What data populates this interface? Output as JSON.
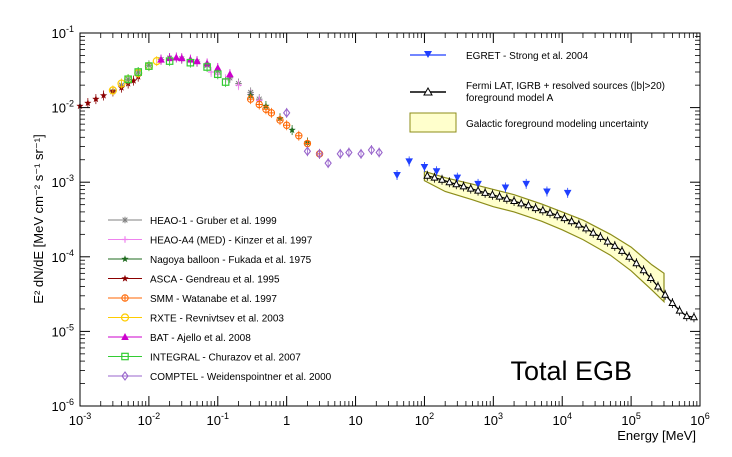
{
  "chart_data": {
    "type": "scatter",
    "title": "Total EGB",
    "xlabel": "Energy [MeV]",
    "ylabel": "E² dN/dE [MeV cm⁻² s⁻¹ sr⁻¹]",
    "xscale": "log",
    "yscale": "log",
    "xlim": [
      0.001,
      1000000
    ],
    "ylim": [
      1e-06,
      0.1
    ],
    "x_ticks": [
      {
        "v": 0.001,
        "b": "10",
        "e": "-3"
      },
      {
        "v": 0.01,
        "b": "10",
        "e": "-2"
      },
      {
        "v": 0.1,
        "b": "10",
        "e": "-1"
      },
      {
        "v": 1,
        "b": "1",
        "e": ""
      },
      {
        "v": 10,
        "b": "10",
        "e": ""
      },
      {
        "v": 100,
        "b": "10",
        "e": "2"
      },
      {
        "v": 1000,
        "b": "10",
        "e": "3"
      },
      {
        "v": 10000,
        "b": "10",
        "e": "4"
      },
      {
        "v": 100000,
        "b": "10",
        "e": "5"
      },
      {
        "v": 1000000,
        "b": "10",
        "e": "6"
      }
    ],
    "y_ticks": [
      {
        "v": 1e-06,
        "b": "10",
        "e": "-6"
      },
      {
        "v": 1e-05,
        "b": "10",
        "e": "-5"
      },
      {
        "v": 0.0001,
        "b": "10",
        "e": "-4"
      },
      {
        "v": 0.001,
        "b": "10",
        "e": "-3"
      },
      {
        "v": 0.01,
        "b": "10",
        "e": "-2"
      },
      {
        "v": 0.1,
        "b": "10",
        "e": "-1"
      }
    ],
    "band": {
      "name": "Galactic foreground modeling uncertainty",
      "color": "#ffffcc",
      "edge": "#8c8c1a",
      "lower": [
        [
          100,
          0.00105
        ],
        [
          200,
          0.00075
        ],
        [
          500,
          0.00058
        ],
        [
          1000,
          0.00047
        ],
        [
          2000,
          0.0004
        ],
        [
          5000,
          0.0003
        ],
        [
          10000,
          0.00023
        ],
        [
          20000,
          0.00017
        ],
        [
          50000,
          0.000105
        ],
        [
          100000,
          6.5e-05
        ],
        [
          200000,
          3.6e-05
        ],
        [
          300000,
          2.5e-05
        ]
      ],
      "upper": [
        [
          100,
          0.0014
        ],
        [
          200,
          0.00115
        ],
        [
          500,
          0.00094
        ],
        [
          1000,
          0.0008
        ],
        [
          2000,
          0.00068
        ],
        [
          5000,
          0.00051
        ],
        [
          10000,
          0.0004
        ],
        [
          20000,
          0.00031
        ],
        [
          50000,
          0.0002
        ],
        [
          100000,
          0.000135
        ],
        [
          200000,
          7.8e-05
        ],
        [
          300000,
          6e-05
        ]
      ]
    },
    "series": [
      {
        "name": "HEAO-1 - Gruber et al. 1999",
        "color": "#808080",
        "marker": "asterisk",
        "points": [
          [
            0.003,
            0.0165
          ],
          [
            0.004,
            0.02
          ],
          [
            0.005,
            0.024
          ],
          [
            0.007,
            0.03
          ],
          [
            0.01,
            0.037
          ],
          [
            0.015,
            0.044
          ],
          [
            0.02,
            0.046
          ],
          [
            0.03,
            0.045
          ],
          [
            0.05,
            0.041
          ],
          [
            0.07,
            0.037
          ],
          [
            0.1,
            0.031
          ],
          [
            0.15,
            0.025
          ],
          [
            0.2,
            0.021
          ],
          [
            0.3,
            0.016
          ],
          [
            0.4,
            0.013
          ]
        ]
      },
      {
        "name": "HEAO-A4 (MED) - Kinzer et al. 1997",
        "color": "#ee82ee",
        "marker": "plus",
        "points": [
          [
            0.08,
            0.03
          ],
          [
            0.1,
            0.028
          ],
          [
            0.13,
            0.024
          ],
          [
            0.2,
            0.02
          ],
          [
            0.3,
            0.015
          ],
          [
            0.4,
            0.0125
          ]
        ]
      },
      {
        "name": "Nagoya balloon - Fukada et al. 1975",
        "color": "#1f6b1f",
        "marker": "star",
        "points": [
          [
            0.3,
            0.0145
          ],
          [
            0.5,
            0.0105
          ],
          [
            0.8,
            0.0072
          ],
          [
            1.2,
            0.005
          ],
          [
            2,
            0.0034
          ]
        ]
      },
      {
        "name": "ASCA - Gendreau et al. 1995",
        "color": "#8b0000",
        "marker": "star",
        "points": [
          [
            0.001,
            0.0105
          ],
          [
            0.0013,
            0.0115
          ],
          [
            0.0017,
            0.013
          ],
          [
            0.0022,
            0.0145
          ],
          [
            0.003,
            0.0165
          ],
          [
            0.004,
            0.0185
          ],
          [
            0.005,
            0.021
          ],
          [
            0.006,
            0.023
          ],
          [
            0.007,
            0.026
          ]
        ]
      },
      {
        "name": "SMM - Watanabe et al. 1997",
        "color": "#ff6600",
        "marker": "crosscircle",
        "points": [
          [
            0.3,
            0.013
          ],
          [
            0.4,
            0.011
          ],
          [
            0.5,
            0.0095
          ],
          [
            0.6,
            0.0085
          ],
          [
            0.8,
            0.0068
          ],
          [
            1,
            0.0058
          ],
          [
            1.5,
            0.0042
          ],
          [
            2,
            0.0033
          ],
          [
            3,
            0.0024
          ]
        ]
      },
      {
        "name": "RXTE - Revnivtsev et al. 2003",
        "color": "#ffcc00",
        "marker": "circle",
        "points": [
          [
            0.003,
            0.017
          ],
          [
            0.004,
            0.021
          ],
          [
            0.005,
            0.024
          ],
          [
            0.007,
            0.029
          ],
          [
            0.01,
            0.036
          ],
          [
            0.013,
            0.042
          ]
        ]
      },
      {
        "name": "BAT - Ajello et al. 2008",
        "color": "#cc00cc",
        "marker": "triangle",
        "points": [
          [
            0.015,
            0.044
          ],
          [
            0.02,
            0.046
          ],
          [
            0.025,
            0.047
          ],
          [
            0.03,
            0.046
          ],
          [
            0.04,
            0.044
          ],
          [
            0.05,
            0.042
          ],
          [
            0.07,
            0.039
          ],
          [
            0.1,
            0.034
          ],
          [
            0.15,
            0.028
          ]
        ]
      },
      {
        "name": "INTEGRAL - Churazov et al. 2007",
        "color": "#33cc33",
        "marker": "square",
        "points": [
          [
            0.005,
            0.024
          ],
          [
            0.007,
            0.03
          ],
          [
            0.01,
            0.036
          ],
          [
            0.02,
            0.042
          ],
          [
            0.04,
            0.04
          ],
          [
            0.07,
            0.035
          ],
          [
            0.1,
            0.028
          ],
          [
            0.13,
            0.022
          ]
        ]
      },
      {
        "name": "COMPTEL - Weidenspointner et al. 2000",
        "color": "#9966cc",
        "marker": "diamond",
        "points": [
          [
            1,
            0.0085
          ],
          [
            2,
            0.0026
          ],
          [
            3,
            0.0024
          ],
          [
            4,
            0.0018
          ],
          [
            6,
            0.0024
          ],
          [
            8,
            0.0025
          ],
          [
            12,
            0.0024
          ],
          [
            17,
            0.0027
          ],
          [
            22,
            0.0025
          ]
        ]
      },
      {
        "name": "EGRET - Strong et al. 2004",
        "color": "#1f3fff",
        "marker": "triangledown",
        "points": [
          [
            40,
            0.00125
          ],
          [
            60,
            0.0019
          ],
          [
            100,
            0.0016
          ],
          [
            150,
            0.0014
          ],
          [
            300,
            0.00115
          ],
          [
            600,
            0.00095
          ],
          [
            1500,
            0.00085
          ],
          [
            3000,
            0.00095
          ],
          [
            6000,
            0.00075
          ],
          [
            12000,
            0.00072
          ]
        ]
      },
      {
        "name": "Fermi LAT, IGRB + resolved sources (|b|>20) foreground model A",
        "color": "#000000",
        "marker": "opentriangle",
        "points": [
          [
            110,
            0.00122
          ],
          [
            140,
            0.00115
          ],
          [
            180,
            0.00108
          ],
          [
            230,
            0.001
          ],
          [
            290,
            0.00094
          ],
          [
            370,
            0.00088
          ],
          [
            470,
            0.00082
          ],
          [
            600,
            0.00077
          ],
          [
            760,
            0.00072
          ],
          [
            970,
            0.00068
          ],
          [
            1230,
            0.00064
          ],
          [
            1570,
            0.0006
          ],
          [
            2000,
            0.00056
          ],
          [
            2540,
            0.00052
          ],
          [
            3230,
            0.00049
          ],
          [
            4110,
            0.00045
          ],
          [
            5230,
            0.00042
          ],
          [
            6650,
            0.00039
          ],
          [
            8460,
            0.00036
          ],
          [
            10760,
            0.00033
          ],
          [
            13690,
            0.0003
          ],
          [
            17410,
            0.00027
          ],
          [
            22140,
            0.00024
          ],
          [
            28160,
            0.00021
          ],
          [
            35820,
            0.000185
          ],
          [
            45560,
            0.00016
          ],
          [
            57960,
            0.00014
          ],
          [
            73710,
            0.00012
          ],
          [
            93760,
            0.0001
          ],
          [
            119270,
            8.2e-05
          ],
          [
            151700,
            6.6e-05
          ],
          [
            192950,
            5.2e-05
          ],
          [
            245440,
            4e-05
          ],
          [
            312190,
            3.1e-05
          ],
          [
            397100,
            2.4e-05
          ],
          [
            505100,
            1.9e-05
          ],
          [
            642480,
            1.6e-05
          ],
          [
            817240,
            1.55e-05
          ]
        ]
      }
    ],
    "legend_upper": {
      "egret": "EGRET - Strong et al. 2004",
      "fermi_line1": "Fermi LAT, IGRB + resolved sources (|b|>20)",
      "fermi_line2": "foreground model A",
      "band": "Galactic foreground modeling uncertainty"
    },
    "legend_lower": [
      "HEAO-1 - Gruber et al. 1999",
      "HEAO-A4 (MED) - Kinzer et al. 1997",
      "Nagoya balloon - Fukada et al. 1975",
      "ASCA - Gendreau et al. 1995",
      "SMM - Watanabe et al. 1997",
      "RXTE - Revnivtsev et al. 2003",
      "BAT - Ajello et al. 2008",
      "INTEGRAL - Churazov et al. 2007",
      "COMPTEL - Weidenspointner et al. 2000"
    ]
  }
}
